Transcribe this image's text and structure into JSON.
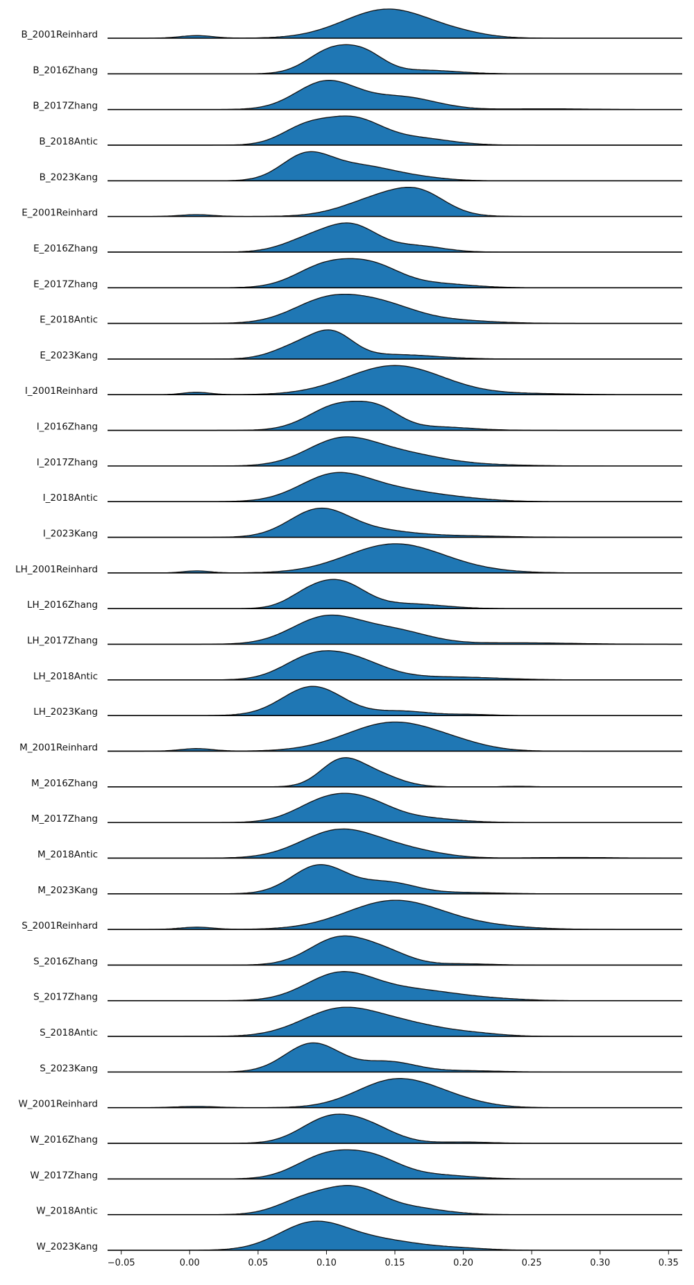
{
  "chart_data": {
    "type": "ridgeline",
    "title": "",
    "xlabel": "",
    "ylabel": "",
    "xlim": [
      -0.06,
      0.36
    ],
    "x_ticks": [
      -0.05,
      0.0,
      0.05,
      0.1,
      0.15,
      0.2,
      0.25,
      0.3,
      0.35
    ],
    "x_tick_labels": [
      "−0.05",
      "0.00",
      "0.05",
      "0.10",
      "0.15",
      "0.20",
      "0.25",
      "0.30",
      "0.35"
    ],
    "fill_color": "#1f77b4",
    "line_color": "#000000",
    "grid": false,
    "legend": "none",
    "series": [
      {
        "name": "B_2001Reinhard",
        "peaks": [
          [
            0.005,
            0.012,
            0.09
          ],
          [
            0.145,
            0.032,
            1.0
          ],
          [
            0.2,
            0.02,
            0.08
          ]
        ]
      },
      {
        "name": "B_2016Zhang",
        "peaks": [
          [
            0.105,
            0.018,
            0.8
          ],
          [
            0.13,
            0.014,
            0.45
          ],
          [
            0.17,
            0.025,
            0.12
          ]
        ]
      },
      {
        "name": "B_2017Zhang",
        "peaks": [
          [
            0.1,
            0.022,
            0.8
          ],
          [
            0.155,
            0.025,
            0.35
          ],
          [
            0.26,
            0.03,
            0.02
          ]
        ]
      },
      {
        "name": "B_2018Antic",
        "peaks": [
          [
            0.085,
            0.018,
            0.5
          ],
          [
            0.12,
            0.02,
            0.7
          ],
          [
            0.165,
            0.025,
            0.2
          ]
        ]
      },
      {
        "name": "B_2023Kang",
        "peaks": [
          [
            0.085,
            0.018,
            0.85
          ],
          [
            0.125,
            0.025,
            0.5
          ],
          [
            0.17,
            0.02,
            0.08
          ]
        ]
      },
      {
        "name": "E_2001Reinhard",
        "peaks": [
          [
            0.005,
            0.012,
            0.07
          ],
          [
            0.145,
            0.028,
            0.8
          ],
          [
            0.17,
            0.018,
            0.5
          ]
        ]
      },
      {
        "name": "E_2016Zhang",
        "peaks": [
          [
            0.09,
            0.02,
            0.45
          ],
          [
            0.12,
            0.018,
            0.75
          ],
          [
            0.165,
            0.02,
            0.2
          ]
        ]
      },
      {
        "name": "E_2017Zhang",
        "peaks": [
          [
            0.1,
            0.022,
            0.65
          ],
          [
            0.135,
            0.02,
            0.55
          ],
          [
            0.18,
            0.025,
            0.12
          ]
        ]
      },
      {
        "name": "E_2018Antic",
        "peaks": [
          [
            0.1,
            0.025,
            0.6
          ],
          [
            0.14,
            0.025,
            0.45
          ],
          [
            0.19,
            0.03,
            0.08
          ]
        ]
      },
      {
        "name": "E_2023Kang",
        "peaks": [
          [
            0.08,
            0.018,
            0.45
          ],
          [
            0.105,
            0.015,
            0.75
          ],
          [
            0.15,
            0.03,
            0.15
          ]
        ]
      },
      {
        "name": "I_2001Reinhard",
        "peaks": [
          [
            0.005,
            0.01,
            0.07
          ],
          [
            0.15,
            0.035,
            0.85
          ],
          [
            0.25,
            0.03,
            0.03
          ]
        ]
      },
      {
        "name": "I_2016Zhang",
        "peaks": [
          [
            0.11,
            0.022,
            0.75
          ],
          [
            0.14,
            0.015,
            0.4
          ],
          [
            0.18,
            0.025,
            0.1
          ]
        ]
      },
      {
        "name": "I_2017Zhang",
        "peaks": [
          [
            0.11,
            0.025,
            0.75
          ],
          [
            0.155,
            0.03,
            0.35
          ],
          [
            0.22,
            0.03,
            0.03
          ]
        ]
      },
      {
        "name": "I_2018Antic",
        "peaks": [
          [
            0.105,
            0.025,
            0.7
          ],
          [
            0.15,
            0.03,
            0.3
          ],
          [
            0.2,
            0.025,
            0.06
          ]
        ]
      },
      {
        "name": "I_2023Kang",
        "peaks": [
          [
            0.095,
            0.022,
            0.95
          ],
          [
            0.14,
            0.025,
            0.2
          ],
          [
            0.2,
            0.03,
            0.05
          ]
        ]
      },
      {
        "name": "LH_2001Reinhard",
        "peaks": [
          [
            0.005,
            0.01,
            0.06
          ],
          [
            0.15,
            0.035,
            0.85
          ],
          [
            0.21,
            0.03,
            0.04
          ]
        ]
      },
      {
        "name": "LH_2016Zhang",
        "peaks": [
          [
            0.085,
            0.015,
            0.35
          ],
          [
            0.11,
            0.018,
            0.8
          ],
          [
            0.16,
            0.025,
            0.15
          ]
        ]
      },
      {
        "name": "LH_2017Zhang",
        "peaks": [
          [
            0.1,
            0.025,
            0.75
          ],
          [
            0.15,
            0.025,
            0.35
          ],
          [
            0.24,
            0.04,
            0.04
          ]
        ]
      },
      {
        "name": "LH_2018Antic",
        "peaks": [
          [
            0.085,
            0.02,
            0.4
          ],
          [
            0.115,
            0.025,
            0.6
          ],
          [
            0.19,
            0.035,
            0.08
          ]
        ]
      },
      {
        "name": "LH_2023Kang",
        "peaks": [
          [
            0.09,
            0.022,
            0.8
          ],
          [
            0.155,
            0.02,
            0.12
          ],
          [
            0.205,
            0.015,
            0.03
          ]
        ]
      },
      {
        "name": "M_2001Reinhard",
        "peaks": [
          [
            0.005,
            0.012,
            0.08
          ],
          [
            0.15,
            0.035,
            0.9
          ],
          [
            0.2,
            0.02,
            0.06
          ]
        ]
      },
      {
        "name": "M_2016Zhang",
        "peaks": [
          [
            0.11,
            0.015,
            0.85
          ],
          [
            0.135,
            0.018,
            0.45
          ],
          [
            0.24,
            0.01,
            0.02
          ]
        ]
      },
      {
        "name": "M_2017Zhang",
        "peaks": [
          [
            0.1,
            0.022,
            0.75
          ],
          [
            0.13,
            0.02,
            0.55
          ],
          [
            0.17,
            0.025,
            0.15
          ]
        ]
      },
      {
        "name": "M_2018Antic",
        "peaks": [
          [
            0.11,
            0.028,
            0.85
          ],
          [
            0.16,
            0.025,
            0.2
          ],
          [
            0.28,
            0.03,
            0.02
          ]
        ]
      },
      {
        "name": "M_2023Kang",
        "peaks": [
          [
            0.095,
            0.02,
            0.9
          ],
          [
            0.145,
            0.02,
            0.35
          ],
          [
            0.2,
            0.025,
            0.04
          ]
        ]
      },
      {
        "name": "S_2001Reinhard",
        "peaks": [
          [
            0.005,
            0.012,
            0.07
          ],
          [
            0.15,
            0.035,
            0.9
          ],
          [
            0.22,
            0.03,
            0.08
          ]
        ]
      },
      {
        "name": "S_2016Zhang",
        "peaks": [
          [
            0.11,
            0.022,
            0.85
          ],
          [
            0.145,
            0.018,
            0.3
          ],
          [
            0.2,
            0.02,
            0.04
          ]
        ]
      },
      {
        "name": "S_2017Zhang",
        "peaks": [
          [
            0.11,
            0.025,
            0.8
          ],
          [
            0.165,
            0.03,
            0.3
          ],
          [
            0.22,
            0.025,
            0.05
          ]
        ]
      },
      {
        "name": "S_2018Antic",
        "peaks": [
          [
            0.11,
            0.028,
            0.75
          ],
          [
            0.16,
            0.028,
            0.3
          ],
          [
            0.21,
            0.02,
            0.06
          ]
        ]
      },
      {
        "name": "S_2023Kang",
        "peaks": [
          [
            0.09,
            0.02,
            0.85
          ],
          [
            0.145,
            0.02,
            0.3
          ],
          [
            0.2,
            0.025,
            0.04
          ]
        ]
      },
      {
        "name": "W_2001Reinhard",
        "peaks": [
          [
            0.005,
            0.015,
            0.04
          ],
          [
            0.15,
            0.028,
            0.85
          ],
          [
            0.19,
            0.025,
            0.2
          ]
        ]
      },
      {
        "name": "W_2016Zhang",
        "peaks": [
          [
            0.1,
            0.02,
            0.7
          ],
          [
            0.13,
            0.02,
            0.5
          ],
          [
            0.2,
            0.02,
            0.04
          ]
        ]
      },
      {
        "name": "W_2017Zhang",
        "peaks": [
          [
            0.1,
            0.022,
            0.7
          ],
          [
            0.135,
            0.02,
            0.55
          ],
          [
            0.18,
            0.025,
            0.12
          ]
        ]
      },
      {
        "name": "W_2018Antic",
        "peaks": [
          [
            0.085,
            0.02,
            0.45
          ],
          [
            0.12,
            0.02,
            0.7
          ],
          [
            0.16,
            0.025,
            0.2
          ]
        ]
      },
      {
        "name": "W_2023Kang",
        "peaks": [
          [
            0.09,
            0.025,
            0.85
          ],
          [
            0.14,
            0.03,
            0.3
          ],
          [
            0.2,
            0.02,
            0.05
          ]
        ]
      }
    ]
  }
}
